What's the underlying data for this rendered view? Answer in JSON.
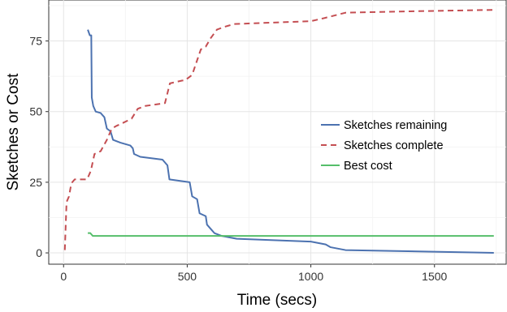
{
  "chart_data": {
    "type": "line",
    "title": "",
    "xlabel": "Time (secs)",
    "ylabel": "Sketches or Cost",
    "xlim": [
      -60,
      1790
    ],
    "ylim": [
      -4,
      89.5
    ],
    "xticks": [
      0,
      500,
      1000,
      1500
    ],
    "xtick_labels": [
      "0",
      "500",
      "1000",
      "1500"
    ],
    "yticks": [
      0,
      25,
      50,
      75
    ],
    "ytick_labels": [
      "0",
      "25",
      "50",
      "75"
    ],
    "grid": true,
    "legend_position": "right",
    "series": [
      {
        "name": "Sketches remaining",
        "color": "#4c72b0",
        "dash": "solid",
        "points": [
          [
            98,
            79
          ],
          [
            106,
            77
          ],
          [
            112,
            77
          ],
          [
            114,
            55
          ],
          [
            120,
            52
          ],
          [
            130,
            50
          ],
          [
            150,
            49.5
          ],
          [
            165,
            48
          ],
          [
            175,
            44
          ],
          [
            190,
            43
          ],
          [
            200,
            40
          ],
          [
            230,
            39
          ],
          [
            270,
            38
          ],
          [
            280,
            37
          ],
          [
            285,
            35
          ],
          [
            310,
            34
          ],
          [
            400,
            33
          ],
          [
            420,
            31
          ],
          [
            428,
            26
          ],
          [
            510,
            25
          ],
          [
            520,
            20
          ],
          [
            540,
            19
          ],
          [
            550,
            14
          ],
          [
            575,
            13
          ],
          [
            580,
            10
          ],
          [
            600,
            8
          ],
          [
            610,
            7
          ],
          [
            640,
            6
          ],
          [
            670,
            5.5
          ],
          [
            700,
            5
          ],
          [
            1000,
            4
          ],
          [
            1060,
            3
          ],
          [
            1080,
            2
          ],
          [
            1110,
            1.5
          ],
          [
            1140,
            1
          ],
          [
            1740,
            0
          ]
        ]
      },
      {
        "name": "Sketches complete",
        "color": "#c44e52",
        "dash": "dashed",
        "points": [
          [
            5,
            1
          ],
          [
            12,
            18
          ],
          [
            22,
            20
          ],
          [
            28,
            23
          ],
          [
            35,
            25
          ],
          [
            45,
            26
          ],
          [
            95,
            26
          ],
          [
            110,
            29
          ],
          [
            120,
            33
          ],
          [
            125,
            35
          ],
          [
            150,
            36
          ],
          [
            175,
            40
          ],
          [
            195,
            44
          ],
          [
            215,
            45
          ],
          [
            240,
            46
          ],
          [
            275,
            47.5
          ],
          [
            300,
            51
          ],
          [
            330,
            52
          ],
          [
            410,
            53
          ],
          [
            430,
            60
          ],
          [
            480,
            61
          ],
          [
            490,
            61
          ],
          [
            520,
            63
          ],
          [
            555,
            72
          ],
          [
            575,
            73
          ],
          [
            595,
            76
          ],
          [
            620,
            79
          ],
          [
            650,
            80
          ],
          [
            690,
            81
          ],
          [
            1000,
            82
          ],
          [
            1050,
            83
          ],
          [
            1140,
            85
          ],
          [
            1400,
            85.5
          ],
          [
            1740,
            86
          ]
        ]
      },
      {
        "name": "Best cost",
        "color": "#55be6a",
        "dash": "solid",
        "points": [
          [
            98,
            7
          ],
          [
            108,
            7
          ],
          [
            118,
            6
          ],
          [
            1740,
            6
          ]
        ]
      }
    ]
  }
}
